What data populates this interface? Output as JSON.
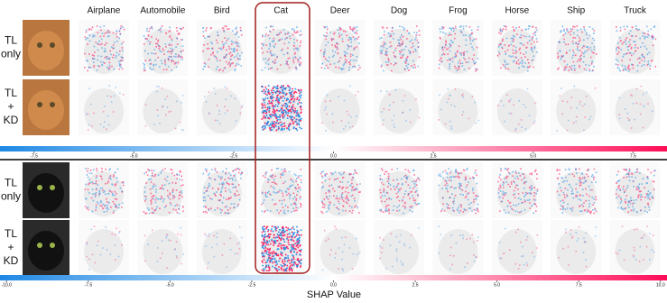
{
  "columns": [
    "Airplane",
    "Automobile",
    "Bird",
    "Cat",
    "Deer",
    "Dog",
    "Frog",
    "Horse",
    "Ship",
    "Truck"
  ],
  "groups": [
    {
      "rows": [
        {
          "label": [
            "TL",
            "only"
          ]
        },
        {
          "label": [
            "TL",
            "+",
            "KD"
          ]
        }
      ],
      "colorbar": {
        "lim": [
          -8.35,
          8.35
        ],
        "ticks": [
          -7.5,
          {
            "value": -5.0,
            "label": "-5.0"
          },
          -2.5,
          {
            "value": 0,
            "label": "0.0"
          },
          2.5,
          {
            "value": 5.0,
            "label": "5.0"
          },
          7.5
        ]
      }
    },
    {
      "rows": [
        {
          "label": [
            "TL",
            "only"
          ]
        },
        {
          "label": [
            "TL",
            "+",
            "KD"
          ]
        }
      ],
      "colorbar": {
        "lim": [
          -10.2,
          10.2
        ],
        "ticks": [
          {
            "value": -10.0,
            "label": "-10.0"
          },
          -7.5,
          {
            "value": -5.0,
            "label": "-5.0"
          },
          -2.5,
          {
            "value": 0,
            "label": "0.0"
          },
          2.5,
          {
            "value": 5.0,
            "label": "5.0"
          },
          7.5,
          {
            "value": 10.0,
            "label": "10.0"
          }
        ]
      }
    }
  ],
  "colorbar_label": "SHAP Value"
}
